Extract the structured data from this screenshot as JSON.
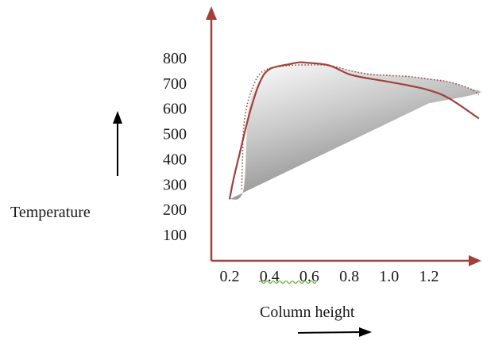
{
  "chart_data": {
    "type": "line",
    "title": "",
    "xlabel": "Column height",
    "ylabel": "Temperature",
    "x_ticks": [
      "0.2",
      "0.4",
      "0.6",
      "0.8",
      "1.0",
      "1.2"
    ],
    "y_ticks": [
      "100",
      "200",
      "300",
      "400",
      "500",
      "600",
      "700",
      "800"
    ],
    "xlim": [
      0.2,
      1.45
    ],
    "ylim": [
      0,
      800
    ],
    "grid": false,
    "legend": "none",
    "series": [
      {
        "style": "solid",
        "color": "#a0413c",
        "x": [
          0.2,
          0.22,
          0.25,
          0.3,
          0.35,
          0.4,
          0.5,
          0.55,
          0.6,
          0.7,
          0.8,
          0.9,
          1.0,
          1.1,
          1.2,
          1.3,
          1.45
        ],
        "y": [
          240,
          320,
          420,
          580,
          700,
          755,
          775,
          782,
          780,
          770,
          735,
          718,
          705,
          690,
          672,
          640,
          560
        ]
      },
      {
        "style": "dotted",
        "color": "#a0413c",
        "x": [
          0.26,
          0.265,
          0.27,
          0.29,
          0.32,
          0.35,
          0.4,
          0.5,
          0.6,
          0.7,
          0.8,
          0.9,
          1.0,
          1.1,
          1.2,
          1.3,
          1.4,
          1.45
        ],
        "y": [
          280,
          400,
          520,
          620,
          690,
          735,
          758,
          770,
          772,
          770,
          750,
          735,
          730,
          726,
          716,
          705,
          680,
          655
        ]
      }
    ],
    "shaded_region": {
      "fill": "gradient gray",
      "x": [
        0.2,
        0.27,
        0.3,
        0.4,
        0.5,
        0.6,
        0.7,
        0.8,
        0.9,
        1.0,
        1.1,
        1.2,
        1.3,
        1.4,
        1.45,
        1.2
      ],
      "y": [
        240,
        280,
        620,
        750,
        770,
        772,
        770,
        752,
        738,
        732,
        726,
        718,
        705,
        680,
        660,
        620
      ]
    }
  },
  "style": {
    "axis_color": "#a0413c",
    "curve_color": "#a0413c",
    "text_color": "#1a1a1a",
    "shade_light": "#ffffff",
    "shade_dark": "#8a8a8a"
  }
}
